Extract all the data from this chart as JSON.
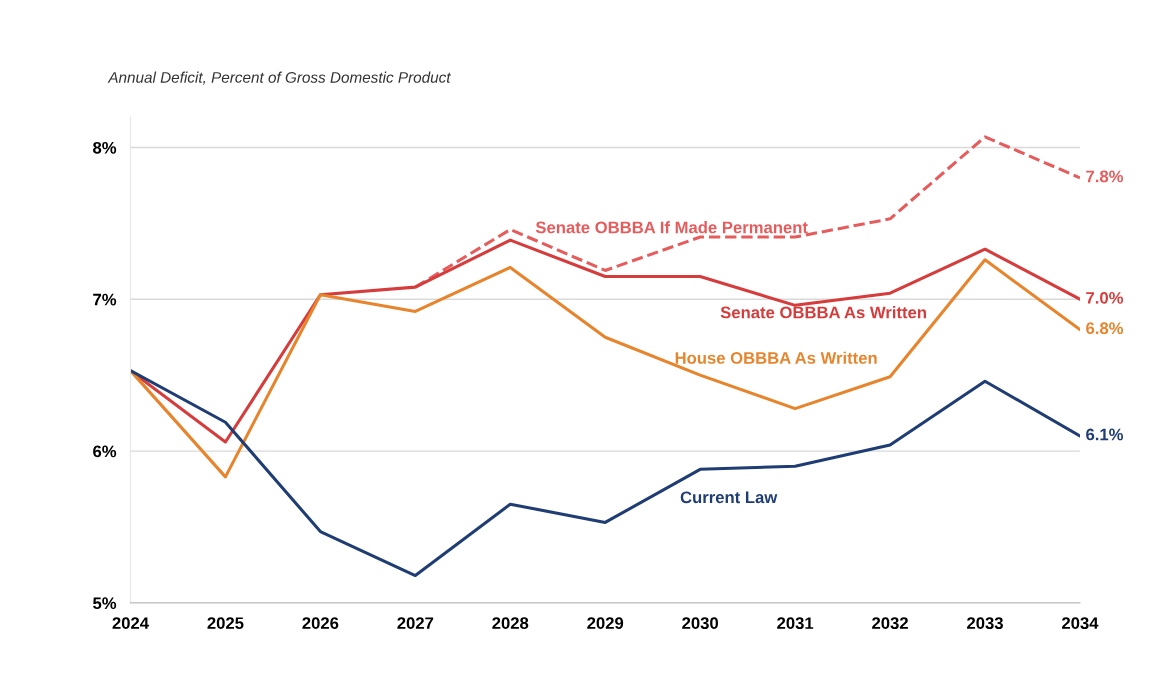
{
  "chart_data": {
    "type": "line",
    "title": "Annual Deficit, Percent of Gross Domestic Product",
    "x": [
      2024,
      2025,
      2026,
      2027,
      2028,
      2029,
      2030,
      2031,
      2032,
      2033,
      2034
    ],
    "series": [
      {
        "name": "Senate OBBBA If Made Permanent",
        "color": "#e65c5c",
        "line_style": "dashed",
        "values": [
          null,
          null,
          null,
          7.08,
          7.46,
          7.19,
          7.41,
          7.41,
          7.53,
          8.07,
          7.8
        ],
        "value_labels": [
          null,
          null,
          null,
          null,
          null,
          null,
          null,
          null,
          null,
          null,
          "7.8%"
        ]
      },
      {
        "name": "Senate OBBBA As Written",
        "color": "#d63c3c",
        "values": [
          6.53,
          6.06,
          7.03,
          7.08,
          7.39,
          7.15,
          7.15,
          6.96,
          7.04,
          7.33,
          7.0
        ],
        "value_labels": [
          null,
          null,
          null,
          null,
          null,
          null,
          null,
          null,
          null,
          null,
          "7.0%"
        ]
      },
      {
        "name": "House OBBBA As Written",
        "color": "#e8842c",
        "values": [
          6.53,
          5.83,
          7.03,
          6.92,
          7.21,
          6.75,
          6.5,
          6.28,
          6.49,
          7.26,
          6.8
        ],
        "value_labels": [
          null,
          null,
          null,
          null,
          null,
          null,
          null,
          null,
          null,
          null,
          "6.8%"
        ]
      },
      {
        "name": "Current Law",
        "color": "#1f3d73",
        "values": [
          6.53,
          6.19,
          5.47,
          5.18,
          5.65,
          5.53,
          5.88,
          5.9,
          6.04,
          6.46,
          6.1
        ],
        "value_labels": [
          null,
          null,
          null,
          null,
          null,
          null,
          null,
          null,
          null,
          null,
          "6.1%"
        ]
      }
    ],
    "xlim": [
      2024,
      2034
    ],
    "xticks": [
      2024,
      2025,
      2026,
      2027,
      2028,
      2029,
      2030,
      2031,
      2032,
      2033,
      2034
    ],
    "ylim": [
      5,
      8.2
    ],
    "yticks": [
      {
        "value": 5,
        "label": "5%"
      },
      {
        "value": 6,
        "label": "6%"
      },
      {
        "value": 7,
        "label": "7%"
      },
      {
        "value": 8,
        "label": "8%"
      }
    ],
    "grid": "y",
    "legend": false,
    "marker": "none"
  }
}
